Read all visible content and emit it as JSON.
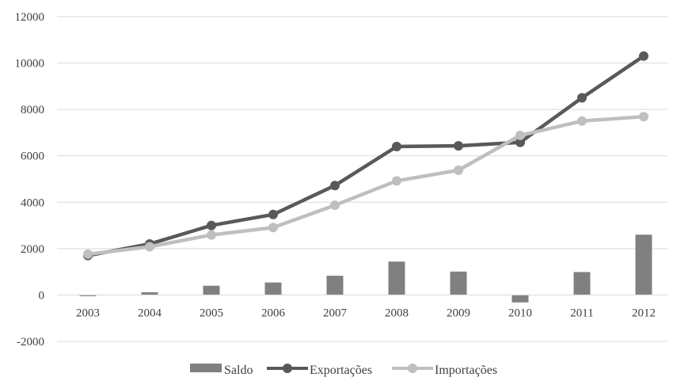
{
  "chart_data": {
    "type": "bar+line",
    "categories": [
      "2003",
      "2004",
      "2005",
      "2006",
      "2007",
      "2008",
      "2009",
      "2010",
      "2011",
      "2012"
    ],
    "series": [
      {
        "name": "Saldo",
        "kind": "bar",
        "color": "#808080",
        "values": [
          -50,
          120,
          400,
          540,
          830,
          1440,
          1010,
          -320,
          990,
          2600
        ]
      },
      {
        "name": "Exportações",
        "kind": "line",
        "color": "#595959",
        "values": [
          1700,
          2200,
          3000,
          3470,
          4720,
          6400,
          6430,
          6580,
          8500,
          10300
        ]
      },
      {
        "name": "Importações",
        "kind": "line",
        "color": "#bfbfbf",
        "values": [
          1760,
          2080,
          2590,
          2910,
          3870,
          4920,
          5380,
          6880,
          7500,
          7690
        ]
      }
    ],
    "y_ticks": [
      "-2000",
      "0",
      "2000",
      "4000",
      "6000",
      "8000",
      "10000",
      "12000"
    ],
    "ylim": [
      -2000,
      12000
    ],
    "grid": true,
    "legend_position": "bottom",
    "title": "",
    "xlabel": "",
    "ylabel": ""
  }
}
